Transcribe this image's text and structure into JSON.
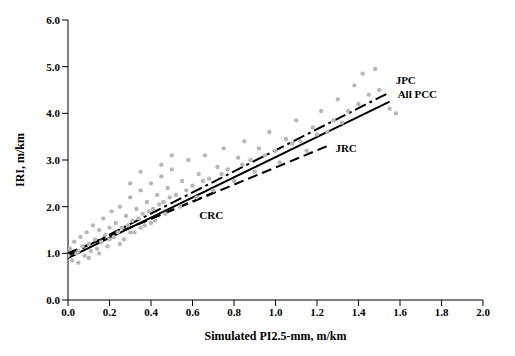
{
  "chart_data": {
    "type": "scatter",
    "x_label": "Simulated PI2.5-mm, m/km",
    "y_label": "IRI, m/km",
    "xlim": [
      0,
      2.0
    ],
    "xticks": [
      {
        "value": 0,
        "label": "0.0"
      },
      0.2,
      0.4,
      0.6,
      0.8,
      {
        "value": 1,
        "label": "1.0"
      },
      1.2,
      1.4,
      1.6,
      1.8,
      {
        "value": 2,
        "label": "2.0"
      }
    ],
    "ylim": [
      0,
      6.0
    ],
    "yticks": [
      {
        "value": 0,
        "label": "0.0"
      },
      {
        "value": 1,
        "label": "1.0"
      },
      {
        "value": 2,
        "label": "2.0"
      },
      {
        "value": 3,
        "label": "3.0"
      },
      {
        "value": 4,
        "label": "4.0"
      },
      {
        "value": 5,
        "label": "5.0"
      },
      {
        "value": 6,
        "label": "6.0"
      }
    ],
    "grid": false,
    "series": [
      {
        "type": "scatter",
        "color": "#b8b8b8",
        "marker": "circle",
        "x": [
          0.0,
          0.01,
          0.02,
          0.03,
          0.04,
          0.05,
          0.06,
          0.07,
          0.08,
          0.09,
          0.1,
          0.11,
          0.12,
          0.13,
          0.14,
          0.15,
          0.16,
          0.17,
          0.18,
          0.19,
          0.2,
          0.21,
          0.22,
          0.23,
          0.24,
          0.25,
          0.26,
          0.27,
          0.28,
          0.29,
          0.3,
          0.31,
          0.32,
          0.33,
          0.34,
          0.35,
          0.36,
          0.37,
          0.38,
          0.39,
          0.4,
          0.41,
          0.42,
          0.43,
          0.44,
          0.45,
          0.46,
          0.47,
          0.48,
          0.49,
          0.5,
          0.52,
          0.54,
          0.55,
          0.57,
          0.58,
          0.6,
          0.62,
          0.63,
          0.65,
          0.66,
          0.68,
          0.7,
          0.72,
          0.74,
          0.75,
          0.77,
          0.8,
          0.82,
          0.84,
          0.85,
          0.88,
          0.9,
          0.92,
          0.95,
          0.97,
          1.0,
          1.02,
          1.05,
          1.08,
          1.1,
          1.12,
          1.15,
          1.18,
          1.2,
          1.22,
          1.25,
          1.28,
          1.3,
          1.32,
          1.35,
          1.38,
          1.4,
          1.42,
          1.45,
          1.48,
          1.5,
          1.55,
          1.58,
          0.05,
          0.1,
          0.15,
          0.2,
          0.25,
          0.3,
          0.35,
          0.4,
          0.3,
          0.35,
          0.45,
          0.5
        ],
        "values": [
          0.95,
          1.1,
          0.85,
          1.25,
          1.0,
          0.8,
          1.35,
          1.15,
          0.95,
          1.45,
          1.2,
          1.05,
          1.6,
          1.3,
          1.1,
          1.5,
          1.25,
          1.75,
          1.4,
          1.15,
          1.55,
          1.9,
          1.35,
          1.65,
          1.45,
          2.0,
          1.55,
          1.3,
          1.8,
          1.6,
          2.2,
          1.7,
          1.45,
          1.95,
          1.75,
          2.35,
          1.85,
          1.6,
          2.1,
          1.9,
          2.5,
          1.95,
          1.7,
          2.25,
          2.05,
          2.65,
          2.1,
          1.85,
          2.4,
          2.2,
          2.8,
          2.25,
          2.0,
          2.55,
          2.35,
          3.0,
          2.45,
          2.2,
          2.7,
          2.55,
          3.1,
          2.6,
          2.35,
          2.85,
          2.7,
          3.25,
          2.8,
          2.55,
          3.05,
          2.9,
          3.4,
          3.0,
          2.75,
          3.25,
          3.1,
          3.6,
          3.2,
          2.95,
          3.45,
          3.35,
          3.85,
          3.4,
          3.2,
          3.7,
          3.55,
          4.05,
          3.6,
          3.85,
          4.3,
          3.8,
          4.05,
          4.6,
          4.2,
          4.85,
          4.4,
          4.95,
          4.5,
          4.1,
          4.0,
          1.05,
          0.9,
          1.0,
          1.3,
          1.2,
          1.45,
          1.55,
          1.65,
          2.5,
          2.75,
          2.9,
          3.1
        ]
      },
      {
        "name": "JPC",
        "type": "line",
        "color": "#000000",
        "line_style": "dashdot",
        "x": [
          0,
          1.55
        ],
        "values": [
          0.95,
          4.45
        ]
      },
      {
        "name": "All PCC",
        "type": "line",
        "color": "#000000",
        "line_style": "solid",
        "x": [
          0,
          1.55
        ],
        "values": [
          0.9,
          4.25
        ]
      },
      {
        "name": "JRC",
        "type": "line",
        "color": "#000000",
        "line_style": "dashed",
        "x": [
          0,
          1.25
        ],
        "values": [
          1.0,
          3.3
        ]
      },
      {
        "name": "CRC",
        "type": "line",
        "color": "#000000",
        "line_style": "dashed",
        "x": [
          0,
          0.7
        ],
        "values": [
          1.0,
          2.3
        ]
      }
    ]
  }
}
